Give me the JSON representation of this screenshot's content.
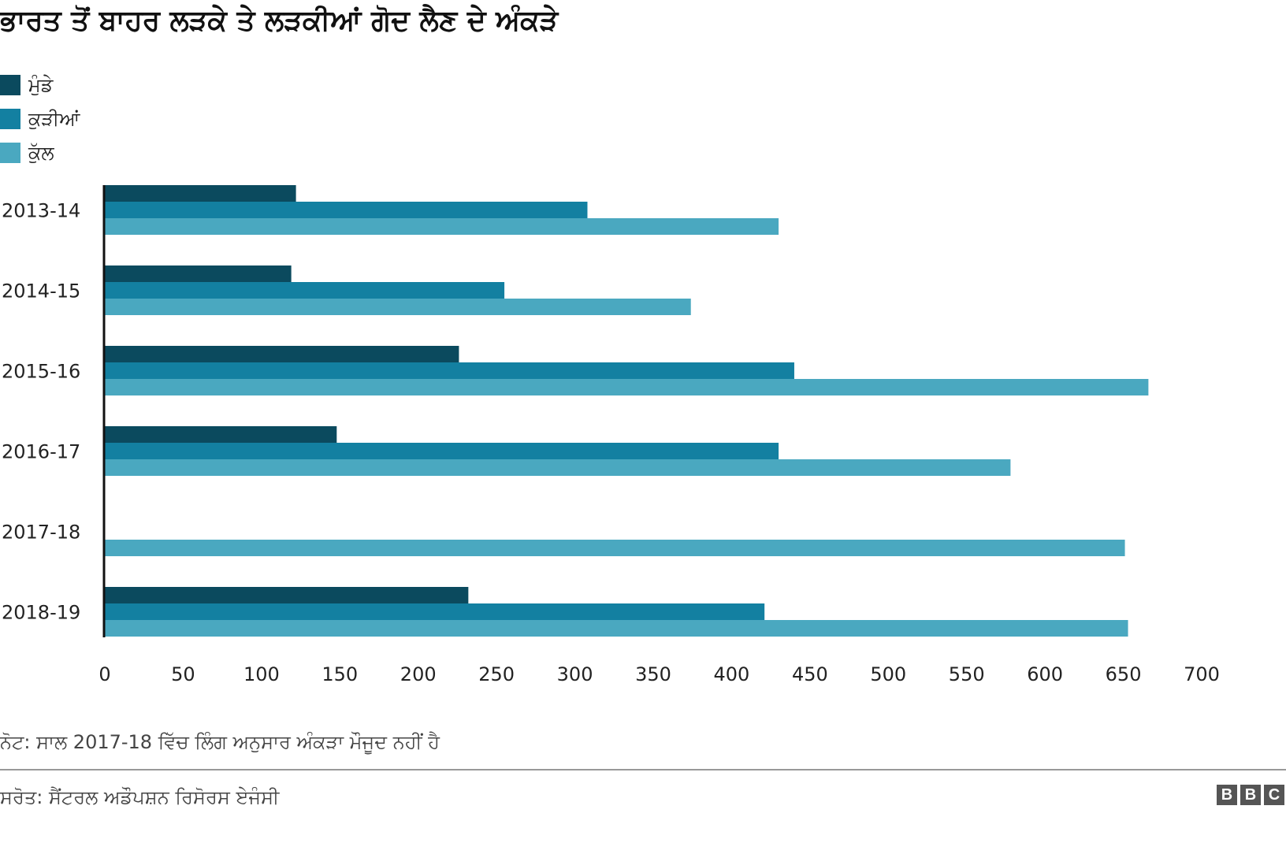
{
  "chart_data": {
    "type": "bar",
    "orientation": "horizontal",
    "title": "ਭਾਰਤ ਤੋਂ ਬਾਹਰ ਲੜਕੇ ਤੇ ਲੜਕੀਆਂ ਗੋਦ ਲੈਣ ਦੇ ਅੰਕੜੇ",
    "categories": [
      "2013-14",
      "2014-15",
      "2015-16",
      "2016-17",
      "2017-18",
      "2018-19"
    ],
    "series": [
      {
        "name": "ਮੁੰਡੇ",
        "color": "#0b4a5e",
        "values": [
          122,
          119,
          226,
          148,
          null,
          232
        ]
      },
      {
        "name": "ਕੁੜੀਆਂ",
        "color": "#1380a1",
        "values": [
          308,
          255,
          440,
          430,
          null,
          421
        ]
      },
      {
        "name": "ਕੁੱਲ",
        "color": "#4aa8c0",
        "values": [
          430,
          374,
          666,
          578,
          651,
          653
        ]
      }
    ],
    "xlim": [
      0,
      700
    ],
    "xticks": [
      0,
      50,
      100,
      150,
      200,
      250,
      300,
      350,
      400,
      450,
      500,
      550,
      600,
      650,
      700
    ],
    "grid": false,
    "legend_position": "top-left"
  },
  "note": "ਨੋਟ: ਸਾਲ 2017-18 ਵਿੱਚ ਲਿੰਗ ਅਨੁਸਾਰ ਅੰਕੜਾ ਮੌਜੂਦ ਨਹੀਂ ਹੈ",
  "source": "ਸਰੋਤ: ਸੈਂਟਰਲ ਅਡੌਪਸ਼ਨ ਰਿਸੋਰਸ ਏਜੰਸੀ",
  "logo": [
    "B",
    "B",
    "C"
  ]
}
